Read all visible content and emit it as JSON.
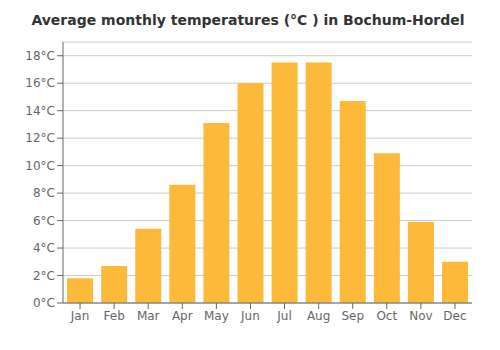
{
  "chart_data": {
    "type": "bar",
    "title": "Average monthly temperatures (°C ) in Bochum-Hordel",
    "categories": [
      "Jan",
      "Feb",
      "Mar",
      "Apr",
      "May",
      "Jun",
      "Jul",
      "Aug",
      "Sep",
      "Oct",
      "Nov",
      "Dec"
    ],
    "values": [
      1.8,
      2.7,
      5.4,
      8.6,
      13.1,
      16.0,
      17.5,
      17.5,
      14.7,
      10.9,
      5.9,
      3.0
    ],
    "color": "#FDB93A",
    "ylim": [
      0,
      19
    ],
    "yticks": [
      {
        "value": 0,
        "label": "0°C"
      },
      {
        "value": 2,
        "label": "2°C"
      },
      {
        "value": 4,
        "label": "4°C"
      },
      {
        "value": 6,
        "label": "6°C"
      },
      {
        "value": 8,
        "label": "8°C"
      },
      {
        "value": 10,
        "label": "10°C"
      },
      {
        "value": 12,
        "label": "12°C"
      },
      {
        "value": 14,
        "label": "14°C"
      },
      {
        "value": 16,
        "label": "16°C"
      },
      {
        "value": 18,
        "label": "18°C"
      }
    ],
    "grid": true
  }
}
